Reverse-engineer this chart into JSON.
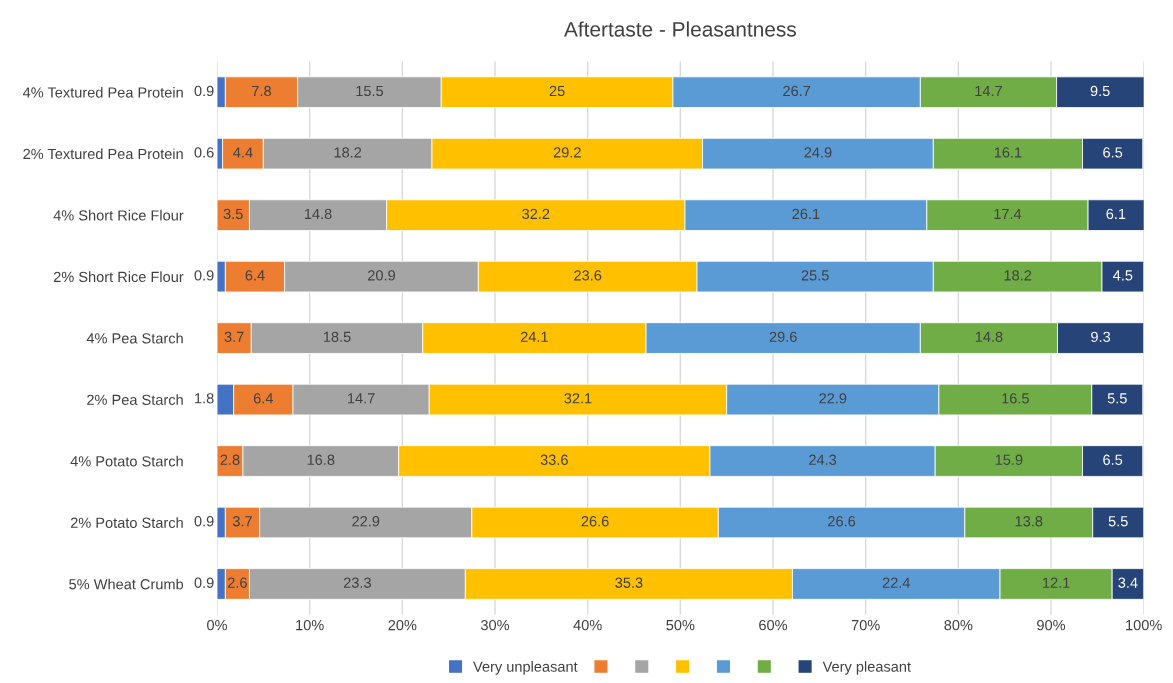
{
  "chart_data": {
    "type": "bar",
    "title": "Aftertaste - Pleasantness",
    "orientation": "horizontal",
    "stacked": true,
    "data_labels": true,
    "grid": "x",
    "legend": "bottom",
    "categories": [
      "4% Textured Pea Protein",
      "2% Textured Pea Protein",
      "4% Short Rice Flour",
      "2% Short Rice Flour",
      "4% Pea Starch",
      "2% Pea Starch",
      "4% Potato Starch",
      "2% Potato Starch",
      "5% Wheat Crumb"
    ],
    "xlim": [
      0,
      100
    ],
    "xticks": [
      {
        "value": 0,
        "label": "0%"
      },
      {
        "value": 10,
        "label": "10%"
      },
      {
        "value": 20,
        "label": "20%"
      },
      {
        "value": 30,
        "label": "30%"
      },
      {
        "value": 40,
        "label": "40%"
      },
      {
        "value": 50,
        "label": "50%"
      },
      {
        "value": 60,
        "label": "60%"
      },
      {
        "value": 70,
        "label": "70%"
      },
      {
        "value": 80,
        "label": "80%"
      },
      {
        "value": 90,
        "label": "90%"
      },
      {
        "value": 100,
        "label": "100%"
      }
    ],
    "series": [
      {
        "name": "Very unpleasant",
        "color": "#4472c4",
        "values": [
          0.9,
          0.6,
          null,
          0.9,
          null,
          1.8,
          null,
          0.9,
          0.9
        ]
      },
      {
        "color": "#ed7d31",
        "values": [
          7.8,
          4.4,
          3.5,
          6.4,
          3.7,
          6.4,
          2.8,
          3.7,
          2.6
        ]
      },
      {
        "color": "#a5a5a5",
        "values": [
          15.5,
          18.2,
          14.8,
          20.9,
          18.5,
          14.7,
          16.8,
          22.9,
          23.3
        ]
      },
      {
        "color": "#ffc000",
        "values": [
          25,
          29.2,
          32.2,
          23.6,
          24.1,
          32.1,
          33.6,
          26.6,
          35.3
        ]
      },
      {
        "color": "#5b9bd5",
        "values": [
          26.7,
          24.9,
          26.1,
          25.5,
          29.6,
          22.9,
          24.3,
          26.6,
          22.4
        ]
      },
      {
        "color": "#70ad47",
        "values": [
          14.7,
          16.1,
          17.4,
          18.2,
          14.8,
          16.5,
          15.9,
          13.8,
          12.1
        ]
      },
      {
        "name": "Very pleasant",
        "color": "#264478",
        "values": [
          9.5,
          6.5,
          6.1,
          4.5,
          9.3,
          5.5,
          6.5,
          5.5,
          3.4
        ]
      }
    ]
  }
}
